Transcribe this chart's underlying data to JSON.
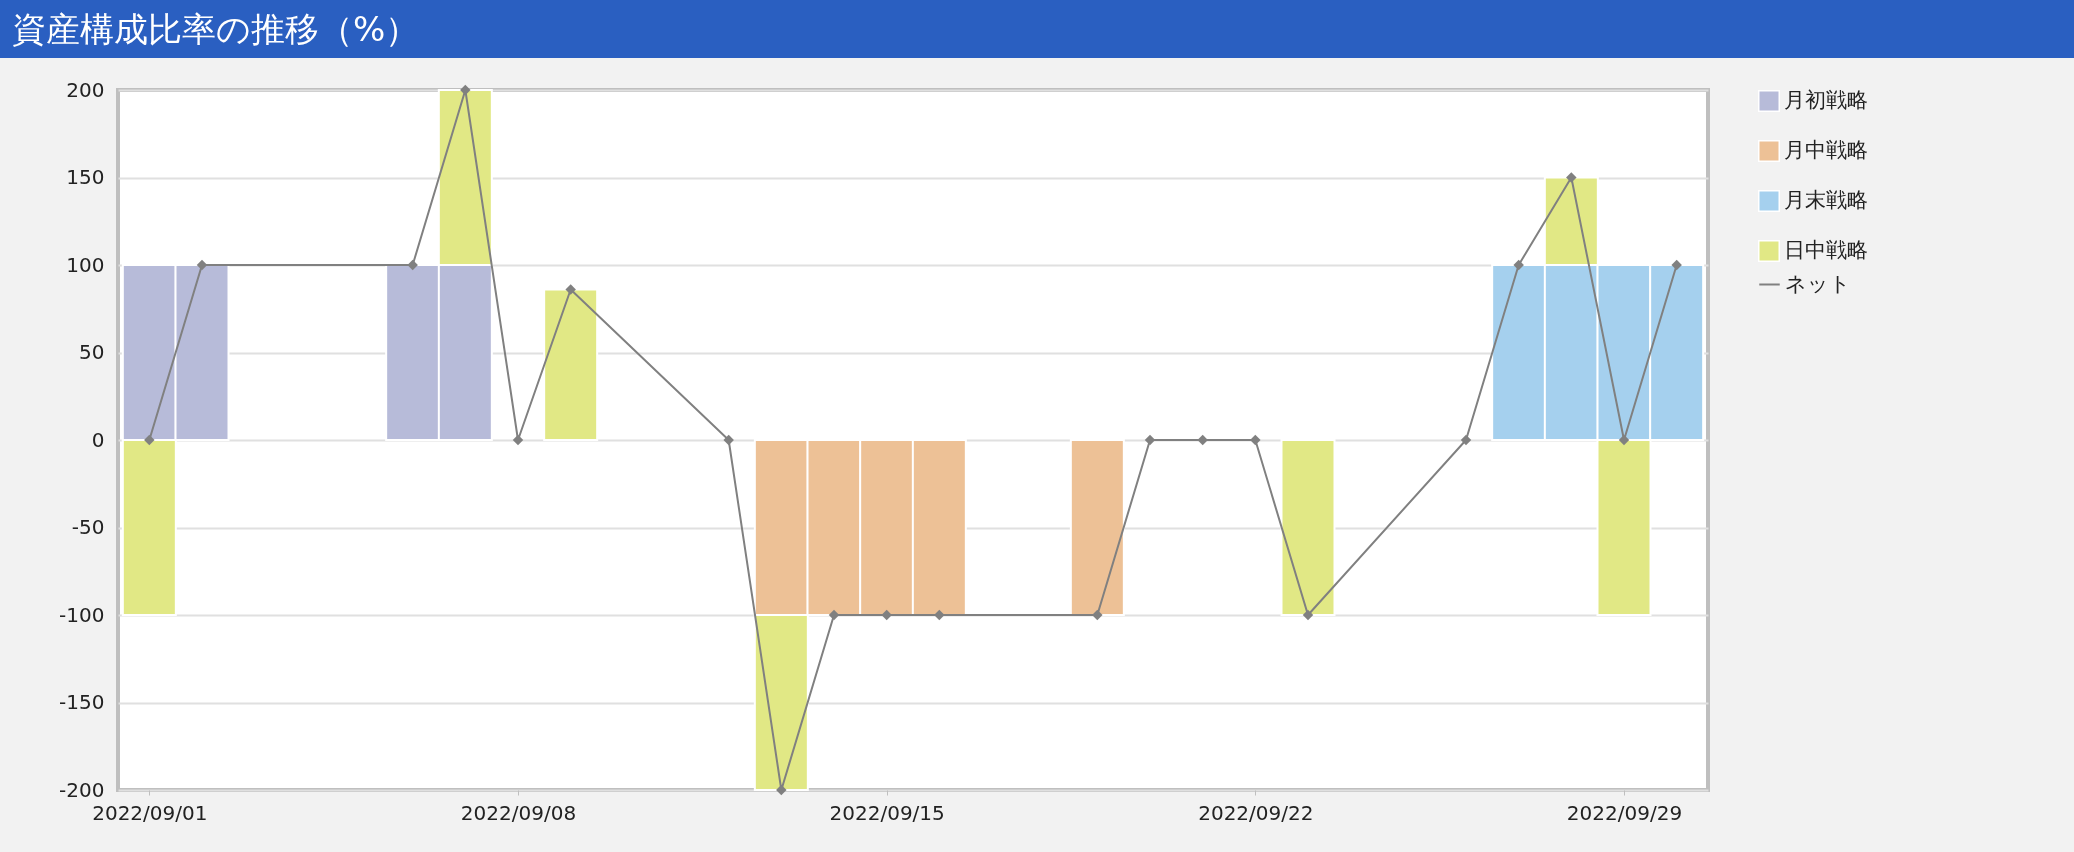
{
  "chart_data": {
    "type": "bar",
    "title": "資産構成比率の推移（%）",
    "stacked": true,
    "grid": "y",
    "legend": "right",
    "marker": "diamond",
    "line_style": "solid",
    "x": [
      "2022-09-01",
      "2022-09-02",
      "2022-09-06",
      "2022-09-07",
      "2022-09-09",
      "2022-09-13",
      "2022-09-14",
      "2022-09-15",
      "2022-09-16",
      "2022-09-19",
      "2022-09-23",
      "2022-09-27",
      "2022-09-28",
      "2022-09-29",
      "2022-09-30"
    ],
    "xlim": [
      "2022-08-31T12:00",
      "2022-09-30T12:00"
    ],
    "xticks": [
      {
        "value": "2022-09-01",
        "label": "2022/09/01"
      },
      {
        "value": "2022-09-08",
        "label": "2022/09/08"
      },
      {
        "value": "2022-09-15",
        "label": "2022/09/15"
      },
      {
        "value": "2022-09-22",
        "label": "2022/09/22"
      },
      {
        "value": "2022-09-29",
        "label": "2022/09/29"
      }
    ],
    "ylim": [
      -200,
      200
    ],
    "yticks": [
      -200,
      -150,
      -100,
      -50,
      0,
      50,
      100,
      150,
      200
    ],
    "series": [
      {
        "name": "月初戦略",
        "color": "#b7bbd9",
        "values": [
          100,
          100,
          100,
          100,
          null,
          null,
          null,
          null,
          null,
          null,
          null,
          null,
          null,
          null,
          null
        ]
      },
      {
        "name": "月中戦略",
        "color": "#edc196",
        "values": [
          null,
          null,
          null,
          null,
          null,
          -100,
          -100,
          -100,
          -100,
          -100,
          null,
          null,
          null,
          null,
          null
        ]
      },
      {
        "name": "月末戦略",
        "color": "#a5d0ee",
        "values": [
          null,
          null,
          null,
          null,
          null,
          null,
          null,
          null,
          null,
          null,
          null,
          100,
          100,
          100,
          100
        ]
      },
      {
        "name": "日中戦略",
        "color": "#e1e885",
        "values": [
          -100,
          null,
          null,
          100,
          86,
          -100,
          null,
          null,
          null,
          null,
          -100,
          null,
          50,
          -100,
          null
        ]
      },
      {
        "name": "ネット",
        "type": "line",
        "color": "#808080",
        "x": [
          "2022-09-01",
          "2022-09-02",
          "2022-09-06",
          "2022-09-07",
          "2022-09-08",
          "2022-09-09",
          "2022-09-12",
          "2022-09-13",
          "2022-09-14",
          "2022-09-15",
          "2022-09-16",
          "2022-09-19",
          "2022-09-20",
          "2022-09-21",
          "2022-09-22",
          "2022-09-23",
          "2022-09-26",
          "2022-09-27",
          "2022-09-28",
          "2022-09-29",
          "2022-09-30"
        ],
        "values": [
          0,
          100,
          100,
          200,
          0,
          86,
          0,
          -200,
          -100,
          -100,
          -100,
          -100,
          0,
          0,
          0,
          -100,
          0,
          100,
          150,
          0,
          100
        ]
      }
    ]
  }
}
